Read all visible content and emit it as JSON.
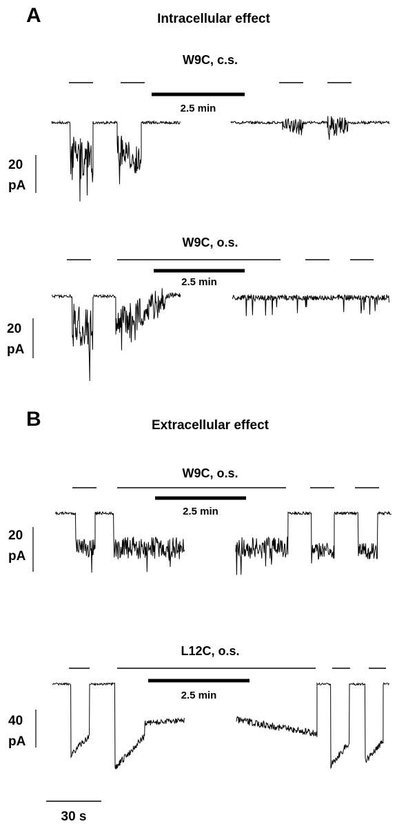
{
  "panels": [
    {
      "label": "A",
      "title": "Intracellular effect",
      "traces": [
        {
          "name": "W9C, c.s.",
          "time_bar": "2.5 min",
          "current_value": "20",
          "current_unit": "pA"
        },
        {
          "name": "W9C, o.s.",
          "time_bar": "2.5 min",
          "current_value": "20",
          "current_unit": "pA"
        }
      ]
    },
    {
      "label": "B",
      "title": "Extracellular effect",
      "traces": [
        {
          "name": "W9C, o.s.",
          "time_bar": "2.5 min",
          "current_value": "20",
          "current_unit": "pA"
        },
        {
          "name": "L12C, o.s.",
          "time_bar": "2.5 min",
          "current_value": "40",
          "current_unit": "pA"
        }
      ]
    }
  ],
  "time_scale": "30 s"
}
